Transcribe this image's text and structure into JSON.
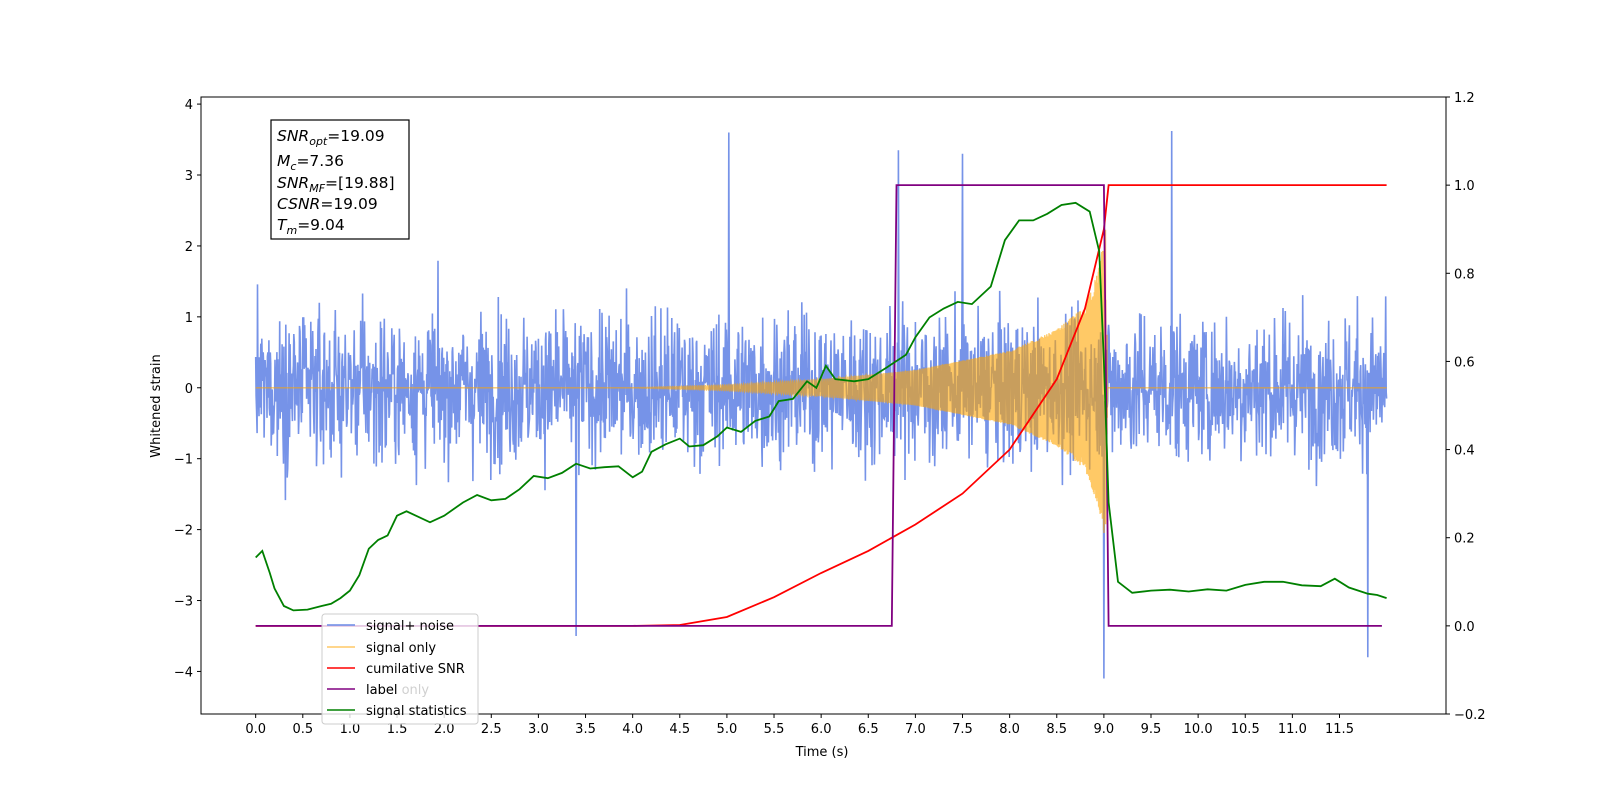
{
  "chart_data": {
    "type": "line",
    "title": "",
    "xlabel": "Time (s)",
    "ylabel_left": "Whitened strain",
    "ylabel_right": "",
    "xlim": [
      -0.58,
      12.63
    ],
    "ylim_left": [
      -4.6,
      4.1
    ],
    "ylim_right": [
      -0.2,
      1.2
    ],
    "x_ticks": [
      0.0,
      0.5,
      1.0,
      1.5,
      2.0,
      2.5,
      3.0,
      3.5,
      4.0,
      4.5,
      5.0,
      5.5,
      6.0,
      6.5,
      7.0,
      7.5,
      8.0,
      8.5,
      9.0,
      9.5,
      10.0,
      10.5,
      11.0,
      11.5
    ],
    "x_tick_labels": [
      "0.0",
      "0.5",
      "1.0",
      "1.5",
      "2.0",
      "2.5",
      "3.0",
      "3.5",
      "4.0",
      "4.5",
      "5.0",
      "5.5",
      "6.0",
      "6.5",
      "7.0",
      "7.5",
      "8.0",
      "8.5",
      "9.0",
      "9.5",
      "10.0",
      "10.5",
      "11.0",
      "11.5"
    ],
    "y_left_ticks": [
      -4,
      -3,
      -2,
      -1,
      0,
      1,
      2,
      3,
      4
    ],
    "y_left_tick_labels": [
      "−4",
      "−3",
      "−2",
      "−1",
      "0",
      "1",
      "2",
      "3",
      "4"
    ],
    "y_right_ticks": [
      -0.2,
      0.0,
      0.2,
      0.4,
      0.6,
      0.8,
      1.0,
      1.2
    ],
    "y_right_tick_labels": [
      "−0.2",
      "0.0",
      "0.2",
      "0.4",
      "0.6",
      "0.8",
      "1.0",
      "1.2"
    ],
    "grid": false,
    "legend_position": "lower-left",
    "series": [
      {
        "name": "signal+ noise",
        "axis": "left",
        "color": "#6a8ae6",
        "x_range": [
          0.0,
          12.0
        ],
        "noise_std": 0.72,
        "notable_spikes": [
          [
            5.02,
            3.6
          ],
          [
            9.72,
            3.62
          ],
          [
            9.0,
            -4.1
          ],
          [
            11.8,
            -3.8
          ],
          [
            3.4,
            -3.5
          ],
          [
            6.82,
            3.35
          ],
          [
            7.5,
            3.3
          ]
        ]
      },
      {
        "name": "signal only",
        "axis": "left",
        "color": "#ffa500",
        "chirp_start": 4.0,
        "merger_time": 9.04,
        "envelope": [
          [
            4.0,
            0.0
          ],
          [
            5.0,
            0.04
          ],
          [
            6.0,
            0.12
          ],
          [
            7.0,
            0.25
          ],
          [
            8.0,
            0.52
          ],
          [
            8.5,
            0.82
          ],
          [
            8.8,
            1.15
          ],
          [
            8.95,
            1.7
          ],
          [
            9.02,
            2.25
          ],
          [
            9.04,
            0.0
          ]
        ]
      },
      {
        "name": "cumilative SNR",
        "axis": "right",
        "color": "#ff0000",
        "points": [
          [
            0.0,
            0.0
          ],
          [
            4.0,
            0.0
          ],
          [
            4.5,
            0.002
          ],
          [
            5.0,
            0.02
          ],
          [
            5.5,
            0.065
          ],
          [
            6.0,
            0.12
          ],
          [
            6.5,
            0.17
          ],
          [
            7.0,
            0.23
          ],
          [
            7.5,
            0.3
          ],
          [
            8.0,
            0.4
          ],
          [
            8.5,
            0.56
          ],
          [
            8.8,
            0.72
          ],
          [
            9.0,
            0.9
          ],
          [
            9.05,
            1.0
          ],
          [
            12.0,
            1.0
          ]
        ]
      },
      {
        "name": "label",
        "axis": "right",
        "color": "#800080",
        "points": [
          [
            0.0,
            0.0
          ],
          [
            6.75,
            0.0
          ],
          [
            6.8,
            1.0
          ],
          [
            9.0,
            1.0
          ],
          [
            9.05,
            0.0
          ],
          [
            11.95,
            0.0
          ]
        ]
      },
      {
        "name": "signal statistics",
        "axis": "right",
        "color": "#008000",
        "points": [
          [
            0.0,
            0.155
          ],
          [
            0.07,
            0.17
          ],
          [
            0.15,
            0.12
          ],
          [
            0.2,
            0.085
          ],
          [
            0.3,
            0.045
          ],
          [
            0.4,
            0.035
          ],
          [
            0.55,
            0.037
          ],
          [
            0.7,
            0.045
          ],
          [
            0.8,
            0.05
          ],
          [
            0.9,
            0.063
          ],
          [
            1.0,
            0.08
          ],
          [
            1.1,
            0.115
          ],
          [
            1.2,
            0.175
          ],
          [
            1.3,
            0.195
          ],
          [
            1.4,
            0.205
          ],
          [
            1.5,
            0.25
          ],
          [
            1.6,
            0.26
          ],
          [
            1.7,
            0.25
          ],
          [
            1.85,
            0.235
          ],
          [
            2.0,
            0.25
          ],
          [
            2.2,
            0.28
          ],
          [
            2.35,
            0.297
          ],
          [
            2.5,
            0.285
          ],
          [
            2.65,
            0.288
          ],
          [
            2.8,
            0.31
          ],
          [
            2.95,
            0.34
          ],
          [
            3.1,
            0.335
          ],
          [
            3.25,
            0.347
          ],
          [
            3.4,
            0.368
          ],
          [
            3.55,
            0.357
          ],
          [
            3.7,
            0.36
          ],
          [
            3.85,
            0.362
          ],
          [
            4.0,
            0.337
          ],
          [
            4.1,
            0.35
          ],
          [
            4.2,
            0.395
          ],
          [
            4.35,
            0.412
          ],
          [
            4.5,
            0.425
          ],
          [
            4.6,
            0.407
          ],
          [
            4.75,
            0.41
          ],
          [
            4.9,
            0.43
          ],
          [
            5.0,
            0.45
          ],
          [
            5.15,
            0.44
          ],
          [
            5.3,
            0.465
          ],
          [
            5.45,
            0.475
          ],
          [
            5.55,
            0.51
          ],
          [
            5.7,
            0.515
          ],
          [
            5.85,
            0.555
          ],
          [
            5.95,
            0.54
          ],
          [
            6.05,
            0.59
          ],
          [
            6.15,
            0.56
          ],
          [
            6.35,
            0.555
          ],
          [
            6.5,
            0.56
          ],
          [
            6.7,
            0.587
          ],
          [
            6.9,
            0.615
          ],
          [
            7.0,
            0.655
          ],
          [
            7.15,
            0.7
          ],
          [
            7.3,
            0.72
          ],
          [
            7.45,
            0.735
          ],
          [
            7.6,
            0.73
          ],
          [
            7.8,
            0.77
          ],
          [
            7.95,
            0.875
          ],
          [
            8.1,
            0.92
          ],
          [
            8.25,
            0.92
          ],
          [
            8.4,
            0.935
          ],
          [
            8.55,
            0.955
          ],
          [
            8.7,
            0.96
          ],
          [
            8.85,
            0.94
          ],
          [
            8.95,
            0.85
          ],
          [
            9.0,
            0.6
          ],
          [
            9.05,
            0.28
          ],
          [
            9.15,
            0.1
          ],
          [
            9.3,
            0.075
          ],
          [
            9.5,
            0.08
          ],
          [
            9.7,
            0.082
          ],
          [
            9.9,
            0.078
          ],
          [
            10.1,
            0.083
          ],
          [
            10.3,
            0.08
          ],
          [
            10.5,
            0.093
          ],
          [
            10.7,
            0.1
          ],
          [
            10.9,
            0.1
          ],
          [
            11.1,
            0.092
          ],
          [
            11.3,
            0.09
          ],
          [
            11.45,
            0.107
          ],
          [
            11.6,
            0.087
          ],
          [
            11.8,
            0.073
          ],
          [
            11.9,
            0.07
          ],
          [
            12.0,
            0.063
          ]
        ]
      }
    ],
    "annotation_lines": [
      "SNR_opt=19.09",
      "M_c=7.36",
      "SNR_MF=[19.88]",
      "CSNR=19.09",
      "T_m=9.04"
    ],
    "legend_hidden_entry": "label only"
  },
  "info_box": {
    "snr_opt": {
      "sym": "SNR",
      "sub": "opt",
      "val": "=19.09"
    },
    "mc": {
      "sym": "M",
      "sub": "c",
      "val": "=7.36"
    },
    "snr_mf": {
      "sym": "SNR",
      "sub": "MF",
      "val": "=[19.88]"
    },
    "csnr": {
      "sym": "CSNR",
      "sub": "",
      "val": "=19.09"
    },
    "tm": {
      "sym": "T",
      "sub": "m",
      "val": "=9.04"
    }
  },
  "legend": {
    "items": [
      "signal+ noise",
      "signal only",
      "cumilative SNR",
      "label",
      "signal statistics"
    ],
    "hidden_item": "label only"
  }
}
